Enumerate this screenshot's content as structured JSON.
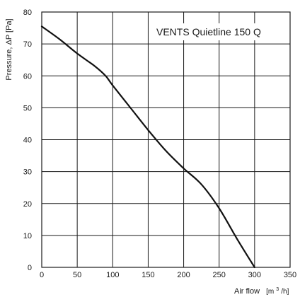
{
  "chart_data": {
    "type": "line",
    "title": "VENTS Quietline 150 Q",
    "xlabel": "Air flow",
    "xlabel_unit_prefix": "[m",
    "xlabel_unit_sup": "3",
    "xlabel_unit_suffix": "/h]",
    "ylabel": "Pressure, ΔP [Pa]",
    "xlim": [
      0,
      350
    ],
    "ylim": [
      0,
      80
    ],
    "x_ticks": [
      0,
      50,
      100,
      150,
      200,
      250,
      300,
      350
    ],
    "y_ticks": [
      0,
      10,
      20,
      30,
      40,
      50,
      60,
      70,
      80
    ],
    "grid": true,
    "colors": {
      "curve": "#111111",
      "grid": "#1a1a1a",
      "background": "#ffffff"
    },
    "series": [
      {
        "x": [
          0,
          25,
          50,
          75,
          90,
          100,
          125,
          150,
          175,
          200,
          225,
          250,
          275,
          300
        ],
        "values": [
          75.5,
          71.5,
          67,
          63,
          60,
          57,
          50,
          43,
          36.5,
          31,
          26,
          18.5,
          9,
          0
        ]
      }
    ]
  }
}
